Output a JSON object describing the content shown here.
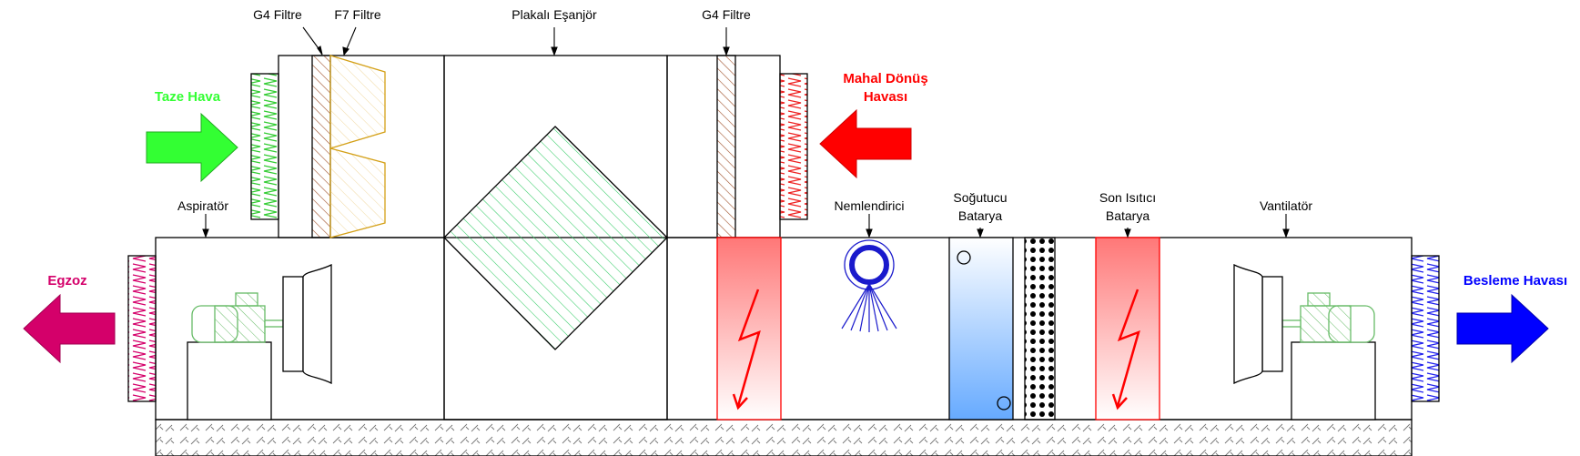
{
  "labels": {
    "g4_filtre_1": "G4 Filtre",
    "f7_filtre": "F7 Filtre",
    "plakali_esanjor": "Plakalı Eşanjör",
    "g4_filtre_2": "G4 Filtre",
    "taze_hava": "Taze Hava",
    "mahal_donus_line1": "Mahal Dönüş",
    "mahal_donus_line2": "Havası",
    "aspirator": "Aspiratör",
    "nemlendirici": "Nemlendirici",
    "sogutucu_line1": "Soğutucu",
    "sogutucu_line2": "Batarya",
    "son_isitici_line1": "Son Isıtıcı",
    "son_isitici_line2": "Batarya",
    "vantilator": "Vantilatör",
    "egzoz": "Egzoz",
    "besleme_havasi": "Besleme Havası"
  },
  "colors": {
    "fresh_air": "#33ff33",
    "return_air": "#ff0000",
    "exhaust": "#d4006a",
    "supply": "#0000ff",
    "filter_hatch": "#a0522d",
    "f7_outline": "#d4a017",
    "exchanger_hatch": "#33cc66",
    "heater_fill": "#ff8080",
    "cooler_fill": "#66aaff",
    "motor": "#66bb66",
    "humidifier": "#1a1acc"
  }
}
